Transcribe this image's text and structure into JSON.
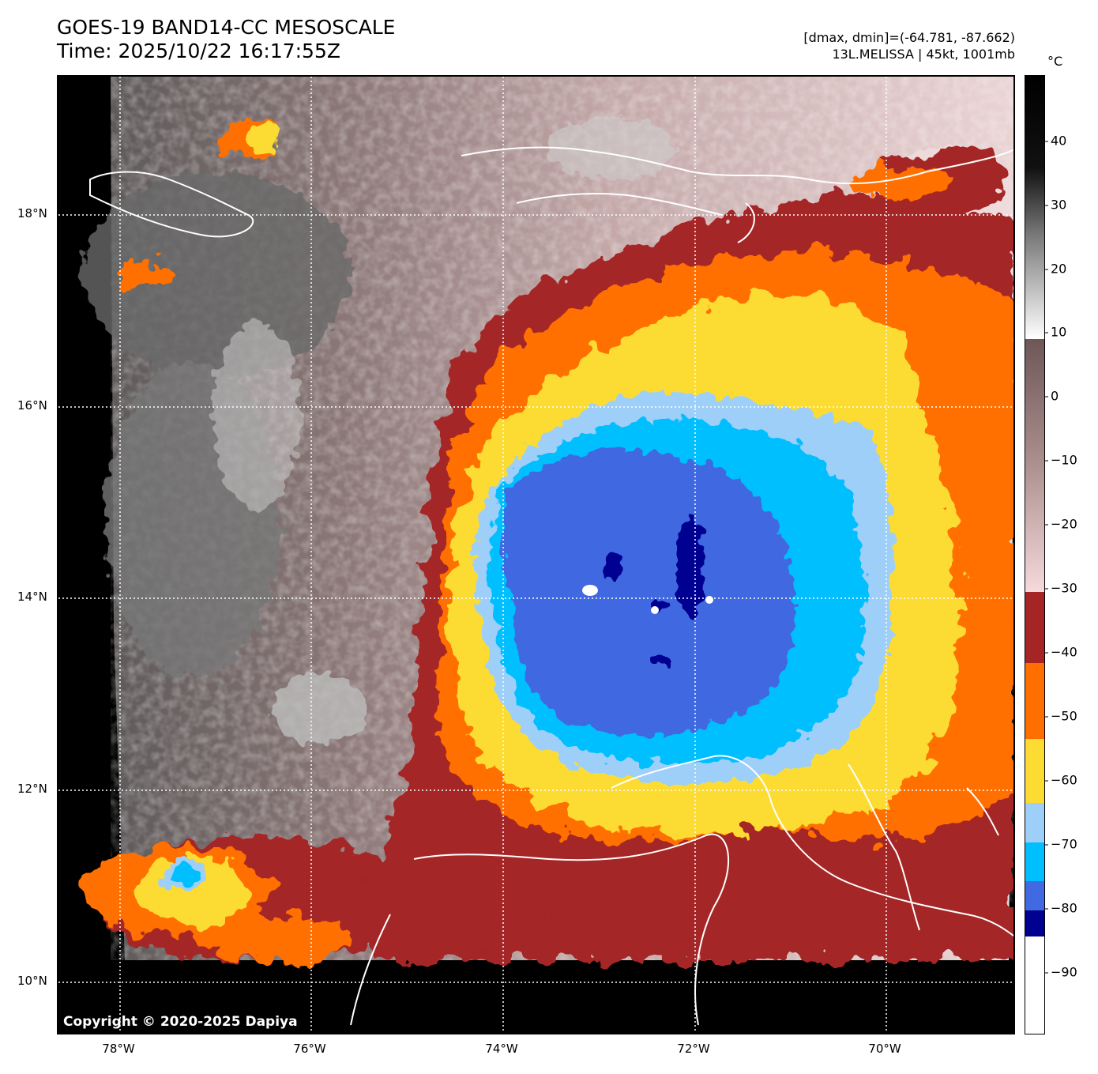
{
  "title": {
    "line1": "GOES-19 BAND14-CC MESOSCALE",
    "line2": "Time: 2025/10/22 16:17:55Z"
  },
  "meta": {
    "line1": "[dmax, dmin]=(-64.781, -87.662)",
    "line2": "13L.MELISSA | 45kt, 1001mb"
  },
  "copyright": "Copyright © 2020-2025 Dapiya",
  "axes": {
    "lat_labels": [
      "18°N",
      "16°N",
      "14°N",
      "12°N",
      "10°N"
    ],
    "lon_labels": [
      "78°W",
      "76°W",
      "74°W",
      "72°W",
      "70°W"
    ]
  },
  "colorbar": {
    "unit": "°C",
    "ticks": [
      "40",
      "30",
      "20",
      "10",
      "0",
      "−10",
      "−20",
      "−30",
      "−40",
      "−50",
      "−60",
      "−70",
      "−80",
      "−90"
    ],
    "colors": {
      "warm_gray_top": "#000000",
      "warm_gray_bottom": "#ffffff",
      "brown_high": "#6e5757",
      "pink_low": "#f6dadb",
      "band_40": "#a52527",
      "band_50": "#ff6f00",
      "band_60": "#fcdc32",
      "band_70": "#9ecff9",
      "band_75": "#00bfff",
      "band_80": "#4169e1",
      "band_85": "#000091",
      "band_90": "#ffffff"
    }
  }
}
